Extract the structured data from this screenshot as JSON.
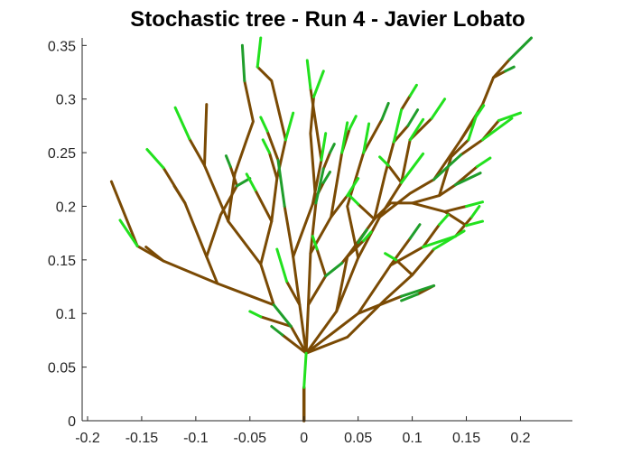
{
  "chart_data": {
    "type": "line",
    "title": "Stochastic tree - Run 4 - Javier Lobato",
    "xlabel": "",
    "ylabel": "",
    "xlim": [
      -0.205,
      0.248
    ],
    "ylim": [
      0,
      0.357
    ],
    "x_ticks": [
      "-0.2",
      "-0.15",
      "-0.1",
      "-0.05",
      "0",
      "0.05",
      "0.1",
      "0.15",
      "0.2"
    ],
    "y_ticks": [
      "0",
      "0.05",
      "0.1",
      "0.15",
      "0.2",
      "0.25",
      "0.3",
      "0.35"
    ],
    "grid": false,
    "legend": "none",
    "colors": {
      "trunk": "#7a4a04",
      "leaf_bright": "#22e11e",
      "leaf_dark": "#1f9e2b",
      "axes": "#262626"
    },
    "series": [
      {
        "values": [
          [
            0,
            0
          ],
          [
            0,
            0.031
          ],
          [
            0.002,
            0.063
          ]
        ]
      },
      {
        "values": [
          [
            0.002,
            0.063
          ],
          [
            -0.012,
            0.088
          ],
          [
            -0.028,
            0.108
          ]
        ]
      },
      {
        "values": [
          [
            -0.028,
            0.108
          ],
          [
            -0.08,
            0.128
          ],
          [
            -0.13,
            0.149
          ],
          [
            -0.154,
            0.163
          ],
          [
            -0.17,
            0.187
          ]
        ]
      },
      {
        "values": [
          [
            -0.154,
            0.163
          ],
          [
            -0.178,
            0.223
          ]
        ]
      },
      {
        "values": [
          [
            -0.13,
            0.149
          ],
          [
            -0.146,
            0.162
          ]
        ]
      },
      {
        "values": [
          [
            -0.08,
            0.128
          ],
          [
            -0.09,
            0.153
          ],
          [
            -0.11,
            0.203
          ],
          [
            -0.13,
            0.236
          ],
          [
            -0.145,
            0.253
          ]
        ]
      },
      {
        "values": [
          [
            -0.11,
            0.203
          ],
          [
            -0.12,
            0.219
          ]
        ]
      },
      {
        "values": [
          [
            -0.09,
            0.153
          ],
          [
            -0.077,
            0.192
          ],
          [
            -0.062,
            0.219
          ],
          [
            -0.05,
            0.226
          ]
        ]
      },
      {
        "values": [
          [
            -0.028,
            0.108
          ],
          [
            -0.04,
            0.146
          ],
          [
            -0.07,
            0.186
          ],
          [
            -0.092,
            0.238
          ],
          [
            -0.106,
            0.263
          ],
          [
            -0.119,
            0.292
          ]
        ]
      },
      {
        "values": [
          [
            -0.092,
            0.238
          ],
          [
            -0.09,
            0.295
          ]
        ]
      },
      {
        "values": [
          [
            -0.07,
            0.186
          ],
          [
            -0.064,
            0.23
          ],
          [
            -0.053,
            0.262
          ],
          [
            -0.047,
            0.279
          ],
          [
            -0.055,
            0.317
          ],
          [
            -0.057,
            0.35
          ]
        ]
      },
      {
        "values": [
          [
            -0.04,
            0.146
          ],
          [
            -0.03,
            0.186
          ],
          [
            -0.025,
            0.226
          ],
          [
            -0.017,
            0.262
          ],
          [
            -0.01,
            0.287
          ]
        ]
      },
      {
        "values": [
          [
            -0.017,
            0.262
          ],
          [
            -0.03,
            0.317
          ],
          [
            -0.043,
            0.33
          ],
          [
            -0.04,
            0.357
          ]
        ]
      },
      {
        "values": [
          [
            0.002,
            0.063
          ],
          [
            -0.004,
            0.108
          ],
          [
            -0.01,
            0.153
          ],
          [
            -0.018,
            0.2
          ],
          [
            -0.024,
            0.243
          ]
        ]
      },
      {
        "values": [
          [
            -0.01,
            0.153
          ],
          [
            0.008,
            0.202
          ],
          [
            0.016,
            0.243
          ],
          [
            0.02,
            0.268
          ]
        ]
      },
      {
        "values": [
          [
            0.016,
            0.243
          ],
          [
            0.006,
            0.31
          ],
          [
            0.003,
            0.336
          ]
        ]
      },
      {
        "values": [
          [
            0.002,
            0.063
          ],
          [
            0.004,
            0.108
          ],
          [
            0.006,
            0.156
          ],
          [
            0.011,
            0.203
          ],
          [
            0.018,
            0.235
          ]
        ]
      },
      {
        "values": [
          [
            0.006,
            0.156
          ],
          [
            0.025,
            0.19
          ],
          [
            0.035,
            0.25
          ],
          [
            0.04,
            0.278
          ]
        ]
      },
      {
        "values": [
          [
            0.011,
            0.203
          ],
          [
            0.006,
            0.268
          ],
          [
            0.009,
            0.302
          ],
          [
            0.018,
            0.326
          ]
        ]
      },
      {
        "values": [
          [
            0.002,
            0.063
          ],
          [
            0.05,
            0.1
          ],
          [
            0.09,
            0.116
          ],
          [
            0.12,
            0.126
          ]
        ]
      },
      {
        "values": [
          [
            0.05,
            0.1
          ],
          [
            0.08,
            0.145
          ],
          [
            0.11,
            0.162
          ],
          [
            0.14,
            0.172
          ]
        ]
      },
      {
        "values": [
          [
            0.002,
            0.063
          ],
          [
            0.03,
            0.102
          ],
          [
            0.05,
            0.152
          ],
          [
            0.07,
            0.19
          ],
          [
            0.09,
            0.222
          ],
          [
            0.11,
            0.249
          ]
        ]
      },
      {
        "values": [
          [
            0.07,
            0.19
          ],
          [
            0.098,
            0.212
          ],
          [
            0.12,
            0.225
          ],
          [
            0.145,
            0.248
          ]
        ]
      },
      {
        "values": [
          [
            0.09,
            0.222
          ],
          [
            0.098,
            0.262
          ],
          [
            0.11,
            0.281
          ]
        ]
      },
      {
        "values": [
          [
            0.145,
            0.248
          ],
          [
            0.165,
            0.262
          ],
          [
            0.192,
            0.282
          ]
        ]
      },
      {
        "values": [
          [
            0.12,
            0.225
          ],
          [
            0.145,
            0.262
          ],
          [
            0.165,
            0.295
          ],
          [
            0.175,
            0.32
          ],
          [
            0.19,
            0.337
          ],
          [
            0.21,
            0.357
          ]
        ]
      },
      {
        "values": [
          [
            0.165,
            0.262
          ],
          [
            0.18,
            0.28
          ],
          [
            0.2,
            0.287
          ]
        ]
      },
      {
        "values": [
          [
            0.05,
            0.152
          ],
          [
            0.04,
            0.2
          ],
          [
            0.055,
            0.25
          ],
          [
            0.06,
            0.277
          ]
        ]
      },
      {
        "values": [
          [
            0.03,
            0.102
          ],
          [
            0.04,
            0.153
          ],
          [
            0.065,
            0.188
          ],
          [
            0.08,
            0.203
          ],
          [
            0.1,
            0.203
          ],
          [
            0.125,
            0.21
          ],
          [
            0.14,
            0.22
          ],
          [
            0.163,
            0.231
          ]
        ]
      },
      {
        "values": [
          [
            0.1,
            0.203
          ],
          [
            0.13,
            0.195
          ],
          [
            0.15,
            0.2
          ],
          [
            0.165,
            0.204
          ]
        ]
      },
      {
        "values": [
          [
            0.002,
            0.063
          ],
          [
            0.04,
            0.078
          ],
          [
            0.075,
            0.113
          ],
          [
            0.1,
            0.136
          ],
          [
            0.12,
            0.16
          ],
          [
            0.148,
            0.177
          ]
        ]
      },
      {
        "values": [
          [
            0.002,
            0.063
          ],
          [
            -0.02,
            0.08
          ],
          [
            -0.03,
            0.088
          ]
        ]
      },
      {
        "values": [
          [
            0.065,
            0.188
          ],
          [
            0.075,
            0.23
          ],
          [
            0.083,
            0.26
          ],
          [
            0.09,
            0.29
          ]
        ]
      },
      {
        "values": [
          [
            0.125,
            0.21
          ],
          [
            0.136,
            0.246
          ],
          [
            0.152,
            0.262
          ],
          [
            0.16,
            0.287
          ]
        ]
      },
      {
        "values": [
          [
            0.055,
            0.25
          ],
          [
            0.072,
            0.281
          ],
          [
            0.078,
            0.296
          ]
        ]
      },
      {
        "values": [
          [
            0.14,
            0.22
          ],
          [
            0.16,
            0.237
          ],
          [
            0.172,
            0.245
          ]
        ]
      },
      {
        "values": [
          [
            -0.004,
            0.108
          ],
          [
            -0.016,
            0.13
          ],
          [
            -0.025,
            0.16
          ]
        ]
      },
      {
        "values": [
          [
            0.004,
            0.108
          ],
          [
            0.02,
            0.135
          ],
          [
            0.035,
            0.147
          ]
        ]
      },
      {
        "values": [
          [
            0.025,
            0.19
          ],
          [
            0.04,
            0.21
          ],
          [
            0.05,
            0.226
          ]
        ]
      },
      {
        "values": [
          [
            0.035,
            0.25
          ],
          [
            0.042,
            0.272
          ],
          [
            0.048,
            0.284
          ]
        ]
      },
      {
        "values": [
          [
            0.083,
            0.26
          ],
          [
            0.096,
            0.275
          ],
          [
            0.105,
            0.29
          ]
        ]
      },
      {
        "values": [
          [
            0.098,
            0.262
          ],
          [
            0.118,
            0.282
          ],
          [
            0.13,
            0.3
          ]
        ]
      },
      {
        "values": [
          [
            0.13,
            0.195
          ],
          [
            0.15,
            0.182
          ],
          [
            0.165,
            0.186
          ]
        ]
      },
      {
        "values": [
          [
            0.08,
            0.145
          ],
          [
            0.098,
            0.17
          ],
          [
            0.107,
            0.183
          ]
        ]
      },
      {
        "values": [
          [
            -0.03,
            0.186
          ],
          [
            -0.045,
            0.215
          ],
          [
            -0.053,
            0.23
          ]
        ]
      },
      {
        "values": [
          [
            -0.025,
            0.226
          ],
          [
            -0.032,
            0.25
          ],
          [
            -0.038,
            0.262
          ]
        ]
      },
      {
        "values": [
          [
            0.008,
            0.202
          ],
          [
            0.018,
            0.222
          ],
          [
            0.024,
            0.232
          ]
        ]
      },
      {
        "values": [
          [
            0.04,
            0.153
          ],
          [
            0.055,
            0.168
          ],
          [
            0.062,
            0.176
          ]
        ]
      },
      {
        "values": [
          [
            0.11,
            0.162
          ],
          [
            0.125,
            0.183
          ],
          [
            0.133,
            0.192
          ]
        ]
      },
      {
        "values": [
          [
            0.12,
            0.126
          ],
          [
            0.105,
            0.118
          ],
          [
            0.09,
            0.112
          ]
        ]
      },
      {
        "values": [
          [
            0.1,
            0.136
          ],
          [
            0.085,
            0.15
          ],
          [
            0.075,
            0.156
          ]
        ]
      },
      {
        "values": [
          [
            -0.024,
            0.243
          ],
          [
            -0.034,
            0.27
          ],
          [
            -0.04,
            0.283
          ]
        ]
      },
      {
        "values": [
          [
            0.018,
            0.235
          ],
          [
            0.024,
            0.25
          ],
          [
            0.028,
            0.258
          ]
        ]
      },
      {
        "values": [
          [
            0.09,
            0.29
          ],
          [
            0.098,
            0.303
          ],
          [
            0.104,
            0.313
          ]
        ]
      },
      {
        "values": [
          [
            0.145,
            0.262
          ],
          [
            0.158,
            0.282
          ],
          [
            0.166,
            0.294
          ]
        ]
      },
      {
        "values": [
          [
            0.175,
            0.32
          ],
          [
            0.186,
            0.326
          ],
          [
            0.194,
            0.33
          ]
        ]
      },
      {
        "values": [
          [
            0.065,
            0.188
          ],
          [
            0.05,
            0.202
          ],
          [
            0.042,
            0.21
          ]
        ]
      },
      {
        "values": [
          [
            0.09,
            0.222
          ],
          [
            0.078,
            0.238
          ],
          [
            0.07,
            0.246
          ]
        ]
      },
      {
        "values": [
          [
            -0.062,
            0.219
          ],
          [
            -0.068,
            0.237
          ],
          [
            -0.072,
            0.247
          ]
        ]
      },
      {
        "values": [
          [
            0.14,
            0.172
          ],
          [
            0.155,
            0.19
          ],
          [
            0.162,
            0.2
          ]
        ]
      },
      {
        "values": [
          [
            -0.012,
            0.088
          ],
          [
            -0.04,
            0.097
          ],
          [
            -0.05,
            0.102
          ]
        ]
      },
      {
        "values": [
          [
            0.035,
            0.147
          ],
          [
            0.05,
            0.166
          ],
          [
            0.058,
            0.178
          ]
        ]
      },
      {
        "values": [
          [
            0.02,
            0.135
          ],
          [
            0.012,
            0.16
          ],
          [
            0.008,
            0.172
          ]
        ]
      }
    ]
  }
}
